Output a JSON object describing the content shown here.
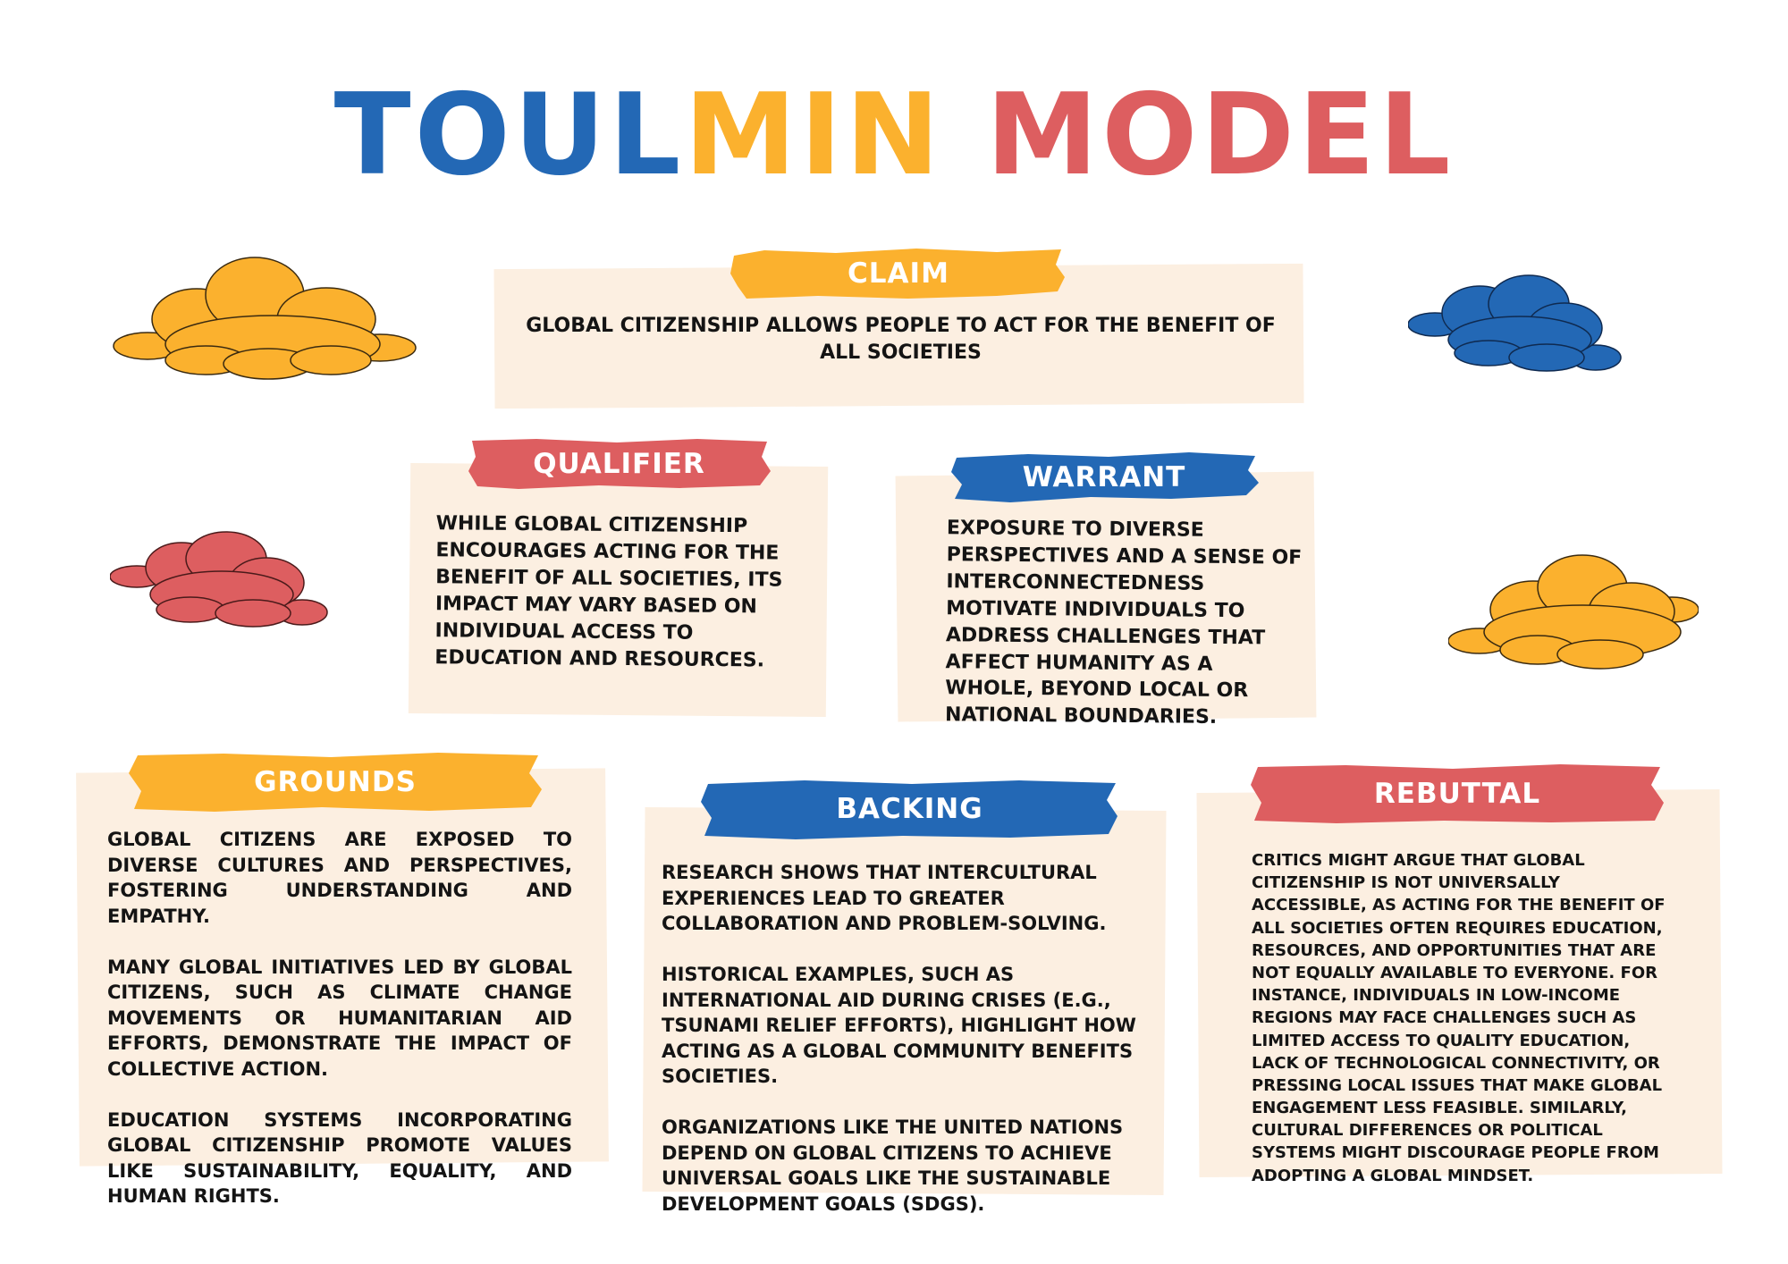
{
  "title": {
    "part1": "TOUL",
    "part2": "MIN",
    "part3": "MODEL"
  },
  "colors": {
    "blue": "#2368b5",
    "yellow": "#fbb12e",
    "red": "#dd5e60",
    "card": "#fcefe1"
  },
  "claim": {
    "label": "CLAIM",
    "text": "Global citizenship allows people to act for the benefit of all societies"
  },
  "qualifier": {
    "label": "QUALIFIER",
    "text": "While global citizenship encourages acting for the benefit of all societies, its impact may vary based on individual access to education and resources."
  },
  "warrant": {
    "label": "WARRANT",
    "text": "Exposure to diverse perspectives and a sense of interconnectedness motivate individuals to address challenges that affect humanity as a whole, beyond local or national boundaries."
  },
  "grounds": {
    "label": "GROUNDS",
    "paragraphs": [
      "Global citizens are exposed to diverse cultures and perspectives, fostering understanding and empathy.",
      "Many global initiatives led by global citizens, such as climate change movements or humanitarian aid efforts, demonstrate the impact of collective action.",
      "Education systems incorporating global citizenship promote values like sustainability, equality, and human rights."
    ]
  },
  "backing": {
    "label": "BACKING",
    "paragraphs": [
      "Research shows that intercultural experiences lead to greater collaboration and problem-solving.",
      "Historical examples, such as international aid during crises (e.g., tsunami relief efforts), highlight how acting as a global community benefits societies.",
      "Organizations like the United Nations depend on global citizens to achieve universal goals like the Sustainable Development Goals (SDGs)."
    ]
  },
  "rebuttal": {
    "label": "REBUTTAL",
    "text": "Critics might argue that global citizenship is not universally accessible, as acting for the benefit of all societies often requires education, resources, and opportunities that are not equally available to everyone. For instance, individuals in low-income regions may face challenges such as limited access to quality education, lack of technological connectivity, or pressing local issues that make global engagement less feasible. Similarly, cultural differences or political systems might discourage people from adopting a global mindset."
  },
  "decorations": [
    {
      "name": "cloud-yellow-top-left-icon",
      "color": "#fbb12e"
    },
    {
      "name": "cloud-blue-top-right-icon",
      "color": "#2368b5"
    },
    {
      "name": "cloud-red-left-icon",
      "color": "#dd5e60"
    },
    {
      "name": "cloud-yellow-right-icon",
      "color": "#fbb12e"
    }
  ]
}
